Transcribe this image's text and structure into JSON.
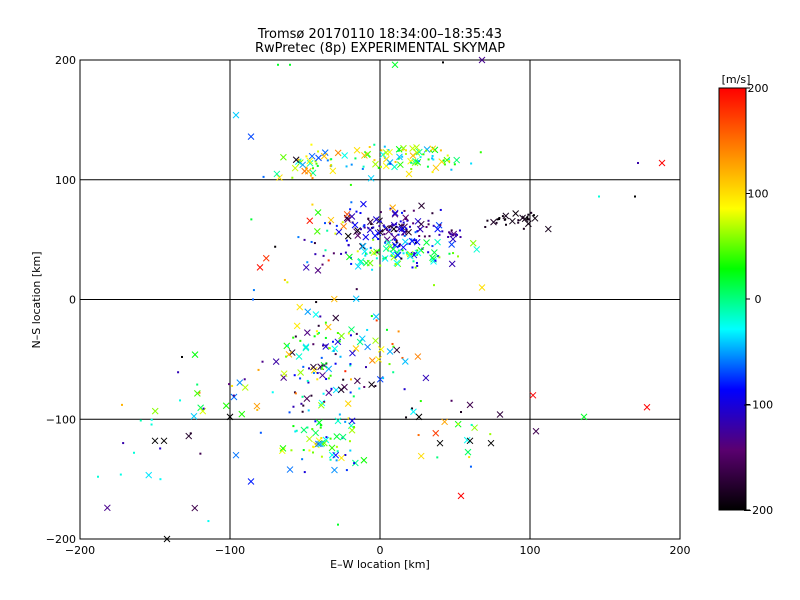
{
  "title_line1": "Tromsø 20170110 18:34:00–18:35:43",
  "title_line2": "RwPretec (8p) EXPERIMENTAL SKYMAP",
  "chart_data": {
    "type": "scatter",
    "title": "Tromsø 20170110 18:34:00–18:35:43",
    "subtitle": "RwPretec (8p) EXPERIMENTAL SKYMAP",
    "xlabel": "E–W location [km]",
    "ylabel": "N–S location [km]",
    "xlim": [
      -200,
      200
    ],
    "ylim": [
      -200,
      200
    ],
    "xticks": [
      -200,
      -100,
      0,
      100,
      200
    ],
    "yticks": [
      -200,
      -100,
      0,
      100,
      200
    ],
    "xtick_labels": [
      "−200",
      "−100",
      "0",
      "100",
      "200"
    ],
    "ytick_labels": [
      "−200",
      "−100",
      "0",
      "100",
      "200"
    ],
    "grid": true,
    "colorbar": {
      "label": "[m/s]",
      "range": [
        -200,
        200
      ],
      "ticks": [
        200,
        100,
        0,
        -100,
        -200
      ],
      "tick_labels": [
        "200",
        "100",
        "0",
        "−100",
        "−200"
      ],
      "colors": [
        "#000000",
        "#5a0070",
        "#0000ff",
        "#00ffff",
        "#00ff00",
        "#ffff00",
        "#ff8000",
        "#ff0000"
      ]
    },
    "clusters": [
      {
        "cx": 10,
        "cy": 60,
        "sx": 18,
        "sy": 8,
        "n": 110,
        "vmin": -200,
        "vmax": -60
      },
      {
        "cx": 15,
        "cy": 38,
        "sx": 20,
        "sy": 6,
        "n": 90,
        "vmin": -120,
        "vmax": 80
      },
      {
        "cx": 20,
        "cy": 118,
        "sx": 20,
        "sy": 6,
        "n": 80,
        "vmin": -60,
        "vmax": 120
      },
      {
        "cx": -45,
        "cy": 112,
        "sx": 12,
        "sy": 8,
        "n": 40,
        "vmin": -80,
        "vmax": 150
      },
      {
        "cx": 85,
        "cy": 66,
        "sx": 10,
        "sy": 4,
        "n": 30,
        "vmin": -200,
        "vmax": -180
      },
      {
        "cx": 48,
        "cy": 56,
        "sx": 4,
        "sy": 3,
        "n": 14,
        "vmin": -140,
        "vmax": -100
      },
      {
        "cx": -40,
        "cy": -50,
        "sx": 16,
        "sy": 22,
        "n": 110,
        "vmin": -200,
        "vmax": 120
      },
      {
        "cx": -35,
        "cy": -120,
        "sx": 12,
        "sy": 12,
        "n": 60,
        "vmin": -100,
        "vmax": 100
      },
      {
        "cx": 0,
        "cy": -50,
        "sx": 14,
        "sy": 14,
        "n": 30,
        "vmin": -200,
        "vmax": 200
      },
      {
        "cx": 55,
        "cy": -110,
        "sx": 20,
        "sy": 16,
        "n": 20,
        "vmin": -200,
        "vmax": 200
      },
      {
        "cx": -40,
        "cy": 60,
        "sx": 25,
        "sy": 30,
        "n": 50,
        "vmin": -200,
        "vmax": 200
      },
      {
        "cx": -145,
        "cy": -130,
        "sx": 20,
        "sy": 25,
        "n": 16,
        "vmin": -200,
        "vmax": 0
      },
      {
        "cx": -100,
        "cy": -80,
        "sx": 18,
        "sy": 15,
        "n": 24,
        "vmin": -150,
        "vmax": 150
      }
    ],
    "points": [
      {
        "x": -96,
        "y": 154,
        "v": -40,
        "m": "x"
      },
      {
        "x": -86,
        "y": 136,
        "v": -70,
        "m": "x"
      },
      {
        "x": 188,
        "y": 114,
        "v": 200,
        "m": "x"
      },
      {
        "x": 172,
        "y": 114,
        "v": -120,
        "m": "dot"
      },
      {
        "x": 170,
        "y": 86,
        "v": -200,
        "m": "dot"
      },
      {
        "x": 146,
        "y": 86,
        "v": -20,
        "m": "dot"
      },
      {
        "x": 10,
        "y": 196,
        "v": 20,
        "m": "x"
      },
      {
        "x": 68,
        "y": 200,
        "v": -130,
        "m": "x"
      },
      {
        "x": 102,
        "y": -80,
        "v": 200,
        "m": "x"
      },
      {
        "x": 136,
        "y": -98,
        "v": 20,
        "m": "x"
      },
      {
        "x": 178,
        "y": -90,
        "v": 200,
        "m": "x"
      },
      {
        "x": 104,
        "y": -110,
        "v": -160,
        "m": "x"
      },
      {
        "x": 68,
        "y": 10,
        "v": 100,
        "m": "x"
      },
      {
        "x": 54,
        "y": -164,
        "v": 200,
        "m": "x"
      },
      {
        "x": -142,
        "y": -200,
        "v": -200,
        "m": "x"
      },
      {
        "x": -28,
        "y": -188,
        "v": 20,
        "m": "dot"
      },
      {
        "x": -188,
        "y": -148,
        "v": -20,
        "m": "dot"
      },
      {
        "x": -172,
        "y": -88,
        "v": 120,
        "m": "dot"
      },
      {
        "x": -132,
        "y": -48,
        "v": -200,
        "m": "dot"
      },
      {
        "x": -144,
        "y": -118,
        "v": -200,
        "m": "x"
      },
      {
        "x": -150,
        "y": -118,
        "v": -200,
        "m": "x"
      },
      {
        "x": -164,
        "y": -128,
        "v": -20,
        "m": "dot"
      },
      {
        "x": -100,
        "y": -98,
        "v": -200,
        "m": "x"
      },
      {
        "x": -96,
        "y": -130,
        "v": -60,
        "m": "x"
      },
      {
        "x": -86,
        "y": -152,
        "v": -80,
        "m": "x"
      },
      {
        "x": -60,
        "y": -142,
        "v": -60,
        "m": "x"
      },
      {
        "x": 40,
        "y": -120,
        "v": -200,
        "m": "x"
      },
      {
        "x": 60,
        "y": -118,
        "v": -200,
        "m": "x"
      },
      {
        "x": 74,
        "y": -120,
        "v": -200,
        "m": "x"
      },
      {
        "x": 80,
        "y": -96,
        "v": -170,
        "m": "x"
      },
      {
        "x": 26,
        "y": -98,
        "v": -200,
        "m": "x"
      },
      {
        "x": 60,
        "y": -88,
        "v": -160,
        "m": "x"
      },
      {
        "x": 52,
        "y": 36,
        "v": 60,
        "m": "dot"
      },
      {
        "x": 36,
        "y": 12,
        "v": 60,
        "m": "dot"
      },
      {
        "x": 42,
        "y": 198,
        "v": -200,
        "m": "dot"
      },
      {
        "x": -60,
        "y": 196,
        "v": 20,
        "m": "dot"
      },
      {
        "x": -68,
        "y": 196,
        "v": 20,
        "m": "dot"
      }
    ]
  }
}
